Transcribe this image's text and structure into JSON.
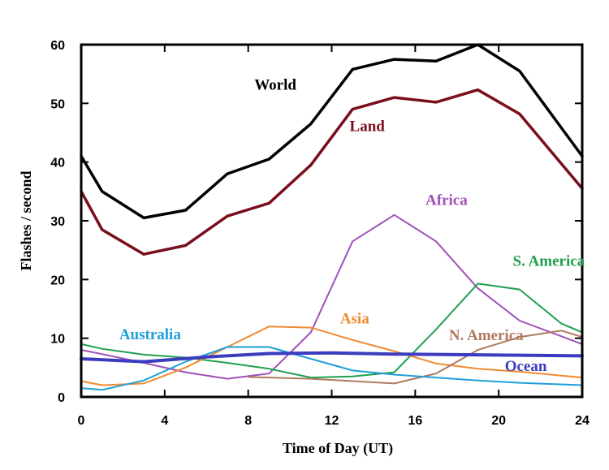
{
  "chart_data": {
    "type": "line",
    "title": "",
    "xlabel": "Time of Day (UT)",
    "ylabel": "Flashes / second",
    "xlim": [
      0,
      24
    ],
    "ylim": [
      0,
      60
    ],
    "xticks": [
      0,
      4,
      8,
      12,
      16,
      20,
      24
    ],
    "yticks": [
      0,
      10,
      20,
      30,
      40,
      50,
      60
    ],
    "grid": false,
    "legend": "inline labels",
    "series": [
      {
        "name": "World",
        "color": "#000000",
        "width": 3.5,
        "x": [
          0,
          1,
          3,
          5,
          7,
          9,
          11,
          13,
          15,
          17,
          19,
          21,
          24
        ],
        "y": [
          41,
          35,
          30.5,
          31.8,
          38,
          40.5,
          46.5,
          55.8,
          57.5,
          57.2,
          60,
          55.5,
          41
        ]
      },
      {
        "name": "Land",
        "color": "#7a0e1c",
        "width": 3.5,
        "x": [
          0,
          1,
          3,
          5,
          7,
          9,
          11,
          13,
          15,
          17,
          19,
          21,
          24
        ],
        "y": [
          35,
          28.5,
          24.3,
          25.8,
          30.8,
          33,
          39.5,
          49,
          51,
          50.2,
          52.3,
          48.2,
          35.5
        ]
      },
      {
        "name": "Africa",
        "color": "#a050b8",
        "width": 2,
        "x": [
          0,
          1,
          3,
          5,
          7,
          9,
          11,
          13,
          15,
          17,
          19,
          21,
          24
        ],
        "y": [
          8,
          7.3,
          5.8,
          4.2,
          3.1,
          4,
          11,
          26.5,
          31,
          26.5,
          18.5,
          13,
          9
        ]
      },
      {
        "name": "S. America",
        "color": "#20a050",
        "width": 2,
        "x": [
          0,
          1,
          3,
          5,
          7,
          9,
          11,
          13,
          15,
          17,
          19,
          21,
          23,
          24
        ],
        "y": [
          9,
          8.2,
          7.2,
          6.7,
          5.8,
          4.8,
          3.3,
          3.5,
          4.2,
          11.5,
          19.3,
          18.3,
          12.5,
          11
        ]
      },
      {
        "name": "Asia",
        "color": "#f08a30",
        "width": 2,
        "x": [
          0,
          1,
          3,
          5,
          7,
          9,
          11,
          13,
          15,
          17,
          19,
          21,
          24
        ],
        "y": [
          2.7,
          2,
          2.3,
          5,
          8.5,
          12,
          11.8,
          9.7,
          7.8,
          5.7,
          4.8,
          4.3,
          3.3
        ]
      },
      {
        "name": "N. America",
        "color": "#b07a60",
        "width": 2,
        "x": [
          8,
          11,
          13,
          15,
          17,
          19,
          21,
          23,
          24
        ],
        "y": [
          3.4,
          3.1,
          2.7,
          2.3,
          4,
          8,
          10.2,
          11.3,
          10.2
        ]
      },
      {
        "name": "Australia",
        "color": "#1f9fd8",
        "width": 2,
        "x": [
          0,
          1,
          3,
          5,
          7,
          9,
          11,
          13,
          15,
          17,
          19,
          21,
          24
        ],
        "y": [
          1.5,
          1.2,
          2.8,
          6,
          8.5,
          8.5,
          6.5,
          4.5,
          3.8,
          3.3,
          2.8,
          2.4,
          2
        ]
      },
      {
        "name": "Ocean",
        "color": "#3c3cc0",
        "width": 4,
        "x": [
          0,
          3,
          6,
          9,
          12,
          15,
          18,
          21,
          24
        ],
        "y": [
          6.5,
          6,
          6.8,
          7.4,
          7.5,
          7.3,
          7.2,
          7.1,
          7
        ]
      }
    ],
    "labels": [
      {
        "text": "World",
        "series": "World",
        "x": 9.3,
        "y": 52.3,
        "color": "#000000"
      },
      {
        "text": "Land",
        "series": "Land",
        "x": 13.7,
        "y": 45.3,
        "color": "#7a0e1c"
      },
      {
        "text": "Africa",
        "series": "Africa",
        "x": 17.5,
        "y": 32.7,
        "color": "#a050b8"
      },
      {
        "text": "S. America",
        "series": "S. America",
        "x": 22.4,
        "y": 22.3,
        "color": "#20a050"
      },
      {
        "text": "Asia",
        "series": "Asia",
        "x": 13.1,
        "y": 12.5,
        "color": "#f08a30"
      },
      {
        "text": "N. America",
        "series": "N. America",
        "x": 19.4,
        "y": 9.7,
        "color": "#b07a60"
      },
      {
        "text": "Australia",
        "series": "Australia",
        "x": 3.3,
        "y": 9.8,
        "color": "#1f9fd8"
      },
      {
        "text": "Ocean",
        "series": "Ocean",
        "x": 21.3,
        "y": 4.4,
        "color": "#3c3cc0"
      }
    ]
  }
}
